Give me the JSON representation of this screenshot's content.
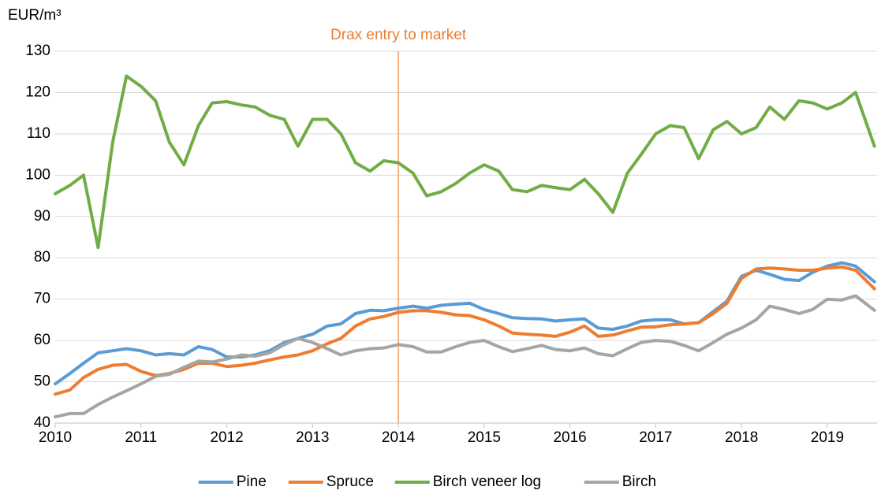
{
  "chart_data": {
    "type": "line",
    "y_axis_label": "EUR/m³",
    "x": [
      2010,
      2010.17,
      2010.33,
      2010.5,
      2010.67,
      2010.83,
      2011,
      2011.17,
      2011.33,
      2011.5,
      2011.67,
      2011.83,
      2012,
      2012.17,
      2012.33,
      2012.5,
      2012.67,
      2012.83,
      2013,
      2013.17,
      2013.33,
      2013.5,
      2013.67,
      2013.83,
      2014,
      2014.17,
      2014.33,
      2014.5,
      2014.67,
      2014.83,
      2015,
      2015.17,
      2015.33,
      2015.5,
      2015.67,
      2015.83,
      2016,
      2016.17,
      2016.33,
      2016.5,
      2016.67,
      2016.83,
      2017,
      2017.17,
      2017.33,
      2017.5,
      2017.67,
      2017.83,
      2018,
      2018.17,
      2018.33,
      2018.5,
      2018.67,
      2018.83,
      2019,
      2019.17,
      2019.33,
      2019.55
    ],
    "series": [
      {
        "name": "Pine",
        "color": "#5b9bd5",
        "values": [
          49.5,
          52,
          54.5,
          57,
          57.5,
          58,
          57.5,
          56.5,
          56.8,
          56.5,
          58.5,
          57.8,
          56,
          56,
          56.5,
          57.5,
          59.5,
          60.5,
          61.5,
          63.5,
          64,
          66.5,
          67.3,
          67.2,
          67.8,
          68.3,
          67.8,
          68.5,
          68.8,
          69,
          67.5,
          66.5,
          65.5,
          65.3,
          65.2,
          64.7,
          65,
          65.2,
          63,
          62.7,
          63.5,
          64.7,
          65,
          65,
          64,
          64.3,
          67,
          69.5,
          75.5,
          77,
          76,
          74.8,
          74.5,
          76.5,
          78,
          78.8,
          78,
          74.2
        ]
      },
      {
        "name": "Spruce",
        "color": "#ed7d31",
        "values": [
          47,
          48,
          51,
          53,
          54,
          54.2,
          52.5,
          51.5,
          52,
          53,
          54.5,
          54.5,
          53.7,
          54,
          54.5,
          55.3,
          56,
          56.5,
          57.5,
          59.2,
          60.5,
          63.5,
          65.2,
          65.8,
          66.8,
          67.2,
          67.2,
          66.8,
          66.2,
          66,
          65,
          63.5,
          61.8,
          61.5,
          61.3,
          61,
          62,
          63.5,
          61,
          61.3,
          62.3,
          63.2,
          63.3,
          63.8,
          64,
          64.3,
          66.5,
          69,
          75,
          77.3,
          77.5,
          77.3,
          77,
          77,
          77.5,
          77.8,
          77,
          72.5
        ]
      },
      {
        "name": "Birch veneer log",
        "color": "#70ad47",
        "values": [
          95.5,
          97.5,
          100,
          82.5,
          108,
          124,
          121.5,
          118,
          108,
          102.5,
          112,
          117.5,
          117.8,
          117,
          116.5,
          114.5,
          113.5,
          107,
          113.5,
          113.5,
          110,
          103,
          101,
          103.5,
          103,
          100.5,
          95,
          96,
          98,
          100.5,
          102.5,
          101,
          96.5,
          96,
          97.5,
          97,
          96.5,
          99,
          95.5,
          91,
          100.5,
          105,
          110,
          112,
          111.5,
          104,
          111,
          113,
          110,
          111.5,
          116.5,
          113.5,
          118,
          117.5,
          116,
          117.5,
          120,
          107
        ]
      },
      {
        "name": "Birch",
        "color": "#a5a5a5",
        "values": [
          41.5,
          42.3,
          42.3,
          44.5,
          46.3,
          47.8,
          49.5,
          51.3,
          51.8,
          53.5,
          55,
          54.8,
          55.5,
          56.5,
          56.2,
          57,
          59,
          60.5,
          59.5,
          58,
          56.5,
          57.5,
          58,
          58.2,
          59,
          58.5,
          57.2,
          57.2,
          58.5,
          59.5,
          60,
          58.5,
          57.3,
          58,
          58.8,
          57.8,
          57.5,
          58.2,
          56.8,
          56.3,
          58,
          59.5,
          60,
          59.8,
          58.8,
          57.5,
          59.5,
          61.5,
          63,
          65,
          68.3,
          67.5,
          66.5,
          67.5,
          70,
          69.8,
          70.8,
          67.3
        ]
      }
    ],
    "xlim": [
      2010,
      2019.58
    ],
    "xticks": [
      2010,
      2011,
      2012,
      2013,
      2014,
      2015,
      2016,
      2017,
      2018,
      2019
    ],
    "ylim": [
      40,
      130
    ],
    "yticks": [
      40,
      50,
      60,
      70,
      80,
      90,
      100,
      110,
      120,
      130
    ],
    "grid": true,
    "legend": "bottom",
    "annotation": {
      "text": "Drax entry to market",
      "x": 2014,
      "color": "#ed7d31",
      "line_color": "#f4b183"
    }
  }
}
